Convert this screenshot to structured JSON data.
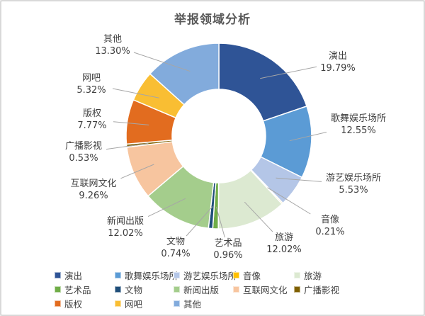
{
  "title": "举报领域分析",
  "chart_data": {
    "type": "pie",
    "subtype": "donut",
    "title": "举报领域分析",
    "legend_position": "bottom",
    "start_angle_deg": 0,
    "label_format": "name + percent",
    "leader_line_color": "#a6a6a6",
    "slices": [
      {
        "name": "演出",
        "value": 19.79,
        "label": "19.79%",
        "color": "#2F5496"
      },
      {
        "name": "歌舞娱乐场所",
        "value": 12.55,
        "label": "12.55%",
        "color": "#5B9BD5"
      },
      {
        "name": "游艺娱乐场所",
        "value": 5.53,
        "label": "5.53%",
        "color": "#B4C6E7"
      },
      {
        "name": "音像",
        "value": 0.21,
        "label": "0.21%",
        "color": "#FFC000"
      },
      {
        "name": "旅游",
        "value": 12.02,
        "label": "12.02%",
        "color": "#DCE9D1"
      },
      {
        "name": "艺术品",
        "value": 0.96,
        "label": "0.96%",
        "color": "#70AD47"
      },
      {
        "name": "文物",
        "value": 0.74,
        "label": "0.74%",
        "color": "#1F4E79"
      },
      {
        "name": "新闻出版",
        "value": 12.02,
        "label": "12.02%",
        "color": "#A4CD8C"
      },
      {
        "name": "互联网文化",
        "value": 9.26,
        "label": "9.26%",
        "color": "#F7C59F"
      },
      {
        "name": "广播影视",
        "value": 0.53,
        "label": "0.53%",
        "color": "#7F6000"
      },
      {
        "name": "版权",
        "value": 7.77,
        "label": "7.77%",
        "color": "#E26C1F"
      },
      {
        "name": "网吧",
        "value": 5.32,
        "label": "5.32%",
        "color": "#F9BE33"
      },
      {
        "name": "其他",
        "value": 13.3,
        "label": "13.30%",
        "color": "#82ABDC"
      }
    ]
  }
}
